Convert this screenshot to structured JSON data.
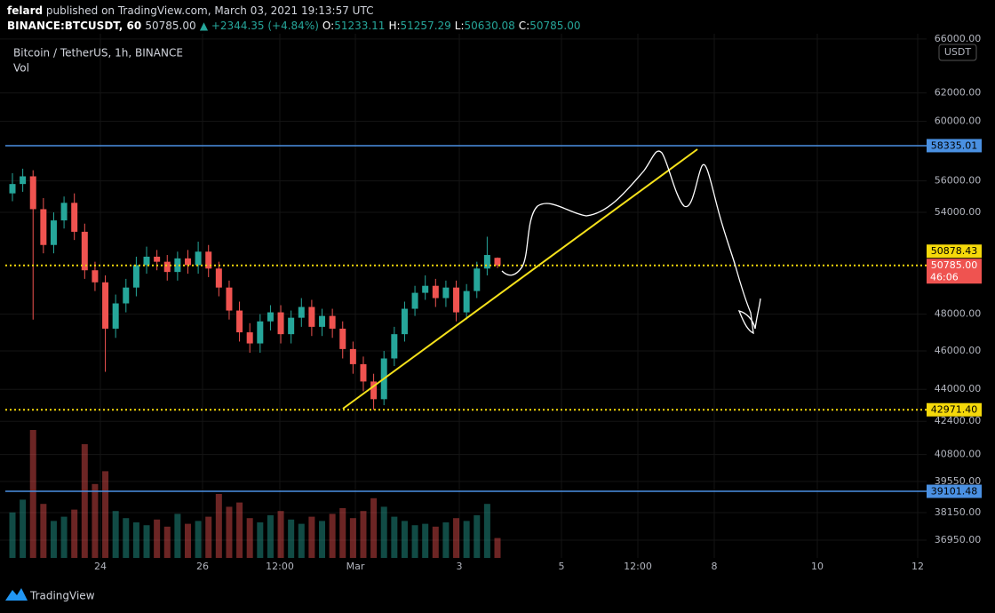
{
  "header": {
    "author": "felard",
    "published": "published on TradingView.com, March 03, 2021 19:13:57 UTC",
    "symbol": "BINANCE:BTCUSDT, 60",
    "last": "50785.00",
    "change": "▲ +2344.35 (+4.84%)",
    "ohlc": [
      {
        "key": "O:",
        "value": "51233.11"
      },
      {
        "key": "H:",
        "value": "51257.29"
      },
      {
        "key": "L:",
        "value": "50630.08"
      },
      {
        "key": "C:",
        "value": "50785.00"
      }
    ]
  },
  "footer": {
    "brand": "TradingView"
  },
  "chart_data": {
    "type": "candlestick",
    "title": "Bitcoin / TetherUS, 1h, BINANCE",
    "subtitle": "Vol",
    "currency": "USDT",
    "open": [
      55200,
      55800,
      56300,
      54200,
      52000,
      53500,
      54600,
      52800,
      50500,
      49800,
      47200,
      48600,
      49500,
      50800,
      51300,
      51000,
      50400,
      51200,
      50800,
      51600,
      50600,
      49500,
      48200,
      47000,
      46400,
      47600,
      48100,
      46900,
      47800,
      48400,
      47300,
      47900,
      47200,
      46100,
      45300,
      44400,
      43500,
      45600,
      46900,
      48300,
      49200,
      49600,
      48900,
      49500,
      48100,
      49300,
      50600,
      51233.11
    ],
    "high": [
      56500,
      56800,
      56700,
      54900,
      54000,
      55000,
      55200,
      53300,
      51000,
      50200,
      49100,
      50000,
      51300,
      51900,
      51700,
      51400,
      51600,
      51700,
      52200,
      52000,
      51000,
      49900,
      48700,
      47500,
      48000,
      48500,
      48500,
      48200,
      48900,
      48800,
      48300,
      48300,
      47600,
      46500,
      45700,
      44800,
      46000,
      47300,
      48700,
      49600,
      50200,
      50000,
      49900,
      49900,
      49700,
      51000,
      52500,
      51257.29
    ],
    "low": [
      54700,
      55300,
      47700,
      51500,
      51500,
      53000,
      52300,
      50000,
      49300,
      44900,
      46700,
      48100,
      49000,
      50300,
      50500,
      49900,
      49900,
      50300,
      50300,
      50100,
      49000,
      47700,
      46500,
      45900,
      45900,
      47100,
      46400,
      46400,
      47300,
      46800,
      46800,
      46700,
      45600,
      44800,
      43900,
      42971.4,
      43200,
      45200,
      46500,
      47900,
      48800,
      48400,
      48400,
      47600,
      47700,
      48900,
      50200,
      50630.08
    ],
    "close": [
      55800,
      56300,
      54200,
      52000,
      53500,
      54600,
      52800,
      50500,
      49800,
      47200,
      48600,
      49500,
      50800,
      51300,
      51000,
      50400,
      51200,
      50800,
      51600,
      50600,
      49500,
      48200,
      47000,
      46400,
      47600,
      48100,
      46900,
      47800,
      48400,
      47300,
      47900,
      47200,
      46100,
      45300,
      44400,
      43500,
      45600,
      46900,
      48300,
      49200,
      49600,
      48900,
      49500,
      48100,
      49300,
      50600,
      51400,
      50785
    ],
    "volume": [
      3200,
      4100,
      9000,
      3800,
      2600,
      2900,
      3400,
      8000,
      5200,
      6100,
      3300,
      2800,
      2500,
      2300,
      2700,
      2200,
      3100,
      2400,
      2600,
      2900,
      4500,
      3600,
      3900,
      2800,
      2500,
      3000,
      3300,
      2700,
      2400,
      2900,
      2600,
      3100,
      3500,
      2800,
      3300,
      4200,
      3600,
      2900,
      2600,
      2300,
      2400,
      2200,
      2500,
      2800,
      2600,
      3000,
      3800,
      1400
    ],
    "vlim": [
      0,
      10000
    ],
    "up_color": "#26a69a",
    "down_color": "#ef5350",
    "log": true,
    "grid": true,
    "ylim": [
      36200,
      66400
    ],
    "yticks": [
      {
        "value": 66000,
        "label": "66000.00"
      },
      {
        "value": 62000,
        "label": "62000.00"
      },
      {
        "value": 60000,
        "label": "60000.00"
      },
      {
        "value": 56000,
        "label": "56000.00"
      },
      {
        "value": 54000,
        "label": "54000.00"
      },
      {
        "value": 48000,
        "label": "48000.00"
      },
      {
        "value": 46000,
        "label": "46000.00"
      },
      {
        "value": 44000,
        "label": "44000.00"
      },
      {
        "value": 42400,
        "label": "42400.00"
      },
      {
        "value": 40800,
        "label": "40800.00"
      },
      {
        "value": 39550,
        "label": "39550.00"
      },
      {
        "value": 38150,
        "label": "38150.00"
      },
      {
        "value": 36950,
        "label": "36950.00"
      }
    ],
    "x_labels": [
      "24",
      "26",
      "12:00",
      "Mar",
      "3",
      "5",
      "12:00",
      "8",
      "10",
      "12"
    ],
    "price_lines": [
      {
        "value": 58335.01,
        "color": "#4a90e2",
        "text_color": "#000",
        "line": "solid",
        "line_color": "#4a90e2"
      },
      {
        "value": 50878.43,
        "color": "#f5d90a",
        "text_color": "#000",
        "line": "none"
      },
      {
        "value": 50785,
        "label": "50785.00",
        "countdown": "46:06",
        "color": "#ef5350",
        "text_color": "#fff",
        "line": "dotted",
        "line_color": "#f5d90a"
      },
      {
        "value": 42971.4,
        "label": "42971.40",
        "color": "#f5d90a",
        "text_color": "#000",
        "line": "dotted",
        "line_color": "#f5d90a"
      },
      {
        "value": 39101.48,
        "color": "#4a90e2",
        "text_color": "#000",
        "line": "solid",
        "line_color": "#4a90e2"
      }
    ]
  }
}
